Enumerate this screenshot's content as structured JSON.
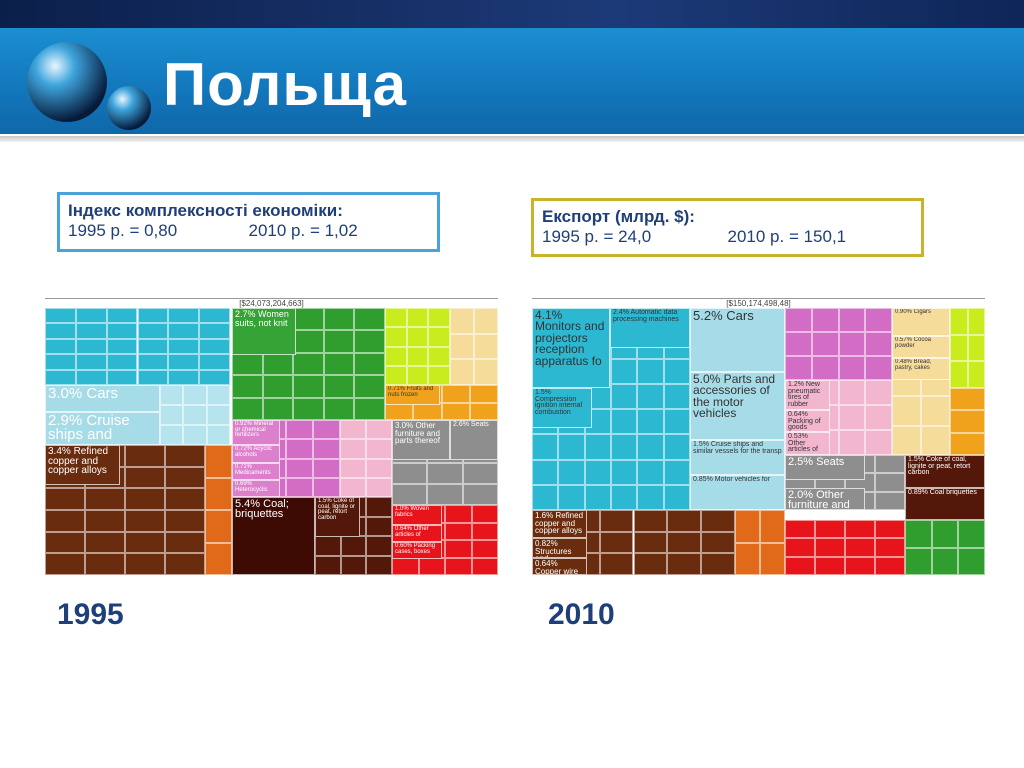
{
  "header": {
    "title": "Польща"
  },
  "info_boxes": [
    {
      "title": "Індекс комплексності економіки:",
      "items": [
        "1995 р. = 0,80",
        "2010 р. = 1,02"
      ]
    },
    {
      "title": "Експорт (млрд. $):",
      "items": [
        "1995 р. = 24,0",
        "2010 р. = 150,1"
      ]
    }
  ],
  "treemaps": [
    {
      "year": "1995",
      "total": "[$24,073,204,663]",
      "tiles": [
        "2.7% Women suits, not knit",
        "3.0% Cars",
        "2.9% Cruise ships and",
        "0.71% Fruits and nuts frozen",
        "0.92% Mineral or chemical fertilizers",
        "0.72% Acyclic alcohols",
        "0.71% Medicaments",
        "0.69% Heterocyclic",
        "3.0% Other furniture and parts thereof",
        "2.6% Seats",
        "3.4% Refined copper and copper alloys",
        "5.4% Coal; briquettes",
        "1.5% Coke of coal, lignite or peat, retort carbon",
        "1.0% Woven fabrics",
        "0.64% Other articles of",
        "0.60% Packing cases, boxes"
      ]
    },
    {
      "year": "2010",
      "total": "[$150,174,498,48]",
      "tiles": [
        "4.1% Monitors and projectors reception apparatus fo",
        "2.4% Automatic data processing machines",
        "1.5% Compression ignition internal combustion",
        "5.2% Cars",
        "5.0% Parts and accessories of the motor vehicles",
        "1.5% Cruise ships and similar vessels for the transp",
        "0.85% Motor vehicles for",
        "1.2% New pneumatic tires of rubber",
        "0.64% Packing of goods",
        "0.53% Other articles of",
        "0.90% Cigars",
        "0.57% Cocoa powder",
        "0.48% Bread, pastry, cakes",
        "2.5% Seats",
        "2.0% Other furniture and",
        "1.6% Refined copper and copper alloys",
        "0.82% Structures and",
        "0.64% Copper wire",
        "1.5% Coke of coal, lignite or peat, retort carbon",
        "0.89% Coal briquettes"
      ]
    }
  ]
}
